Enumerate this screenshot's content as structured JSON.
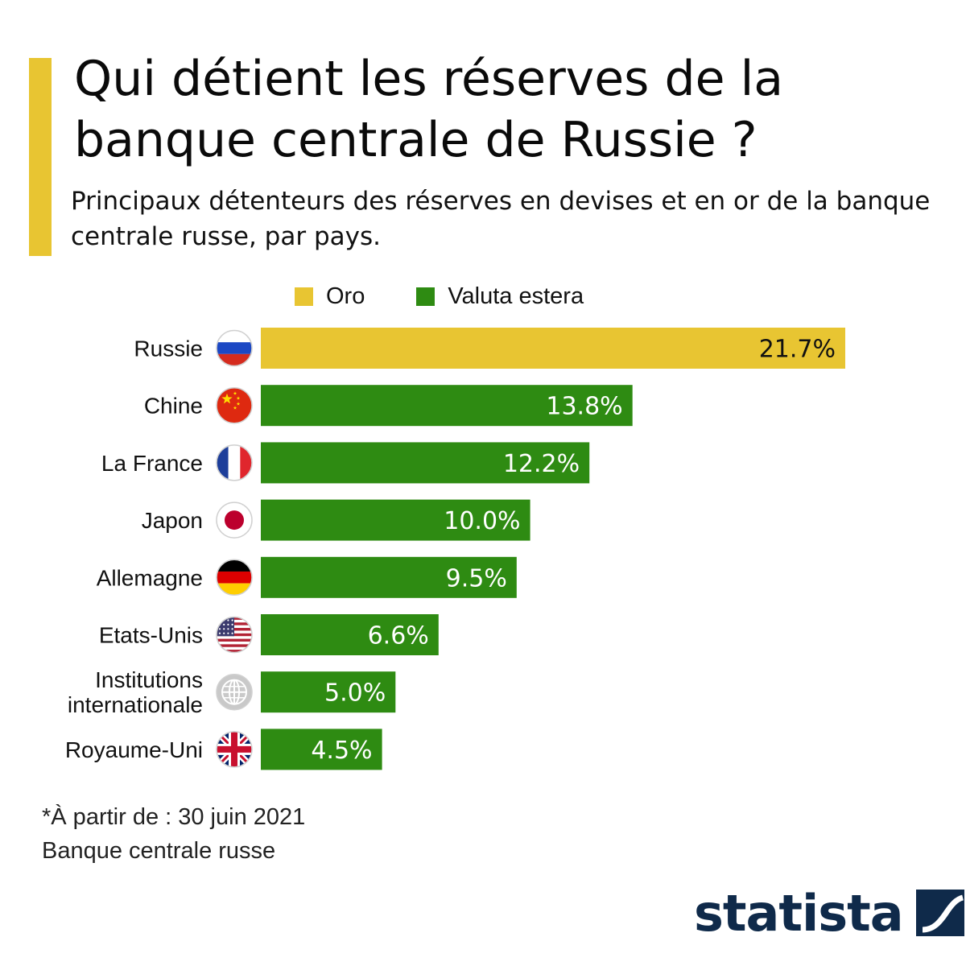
{
  "header": {
    "title": "Qui détient les réserves de la banque centrale de Russie ?",
    "subtitle": "Principaux détenteurs des réserves en devises et en or de la banque centrale russe, par pays."
  },
  "colors": {
    "accent": "#e8c532",
    "gold": "#e8c532",
    "foreign_currency": "#2e8b12",
    "logo": "#0f2a4a"
  },
  "chart_data": {
    "type": "bar",
    "orientation": "horizontal",
    "legend": [
      {
        "name": "Oro",
        "color": "#e8c532"
      },
      {
        "name": "Valuta estera",
        "color": "#2e8b12"
      }
    ],
    "legend_position": "top",
    "categories": [
      "Russie",
      "Chine",
      "La France",
      "Japon",
      "Allemagne",
      "Etats-Unis",
      "Institutions internationale",
      "Royaume-Uni"
    ],
    "category_lines": [
      [
        "Russie"
      ],
      [
        "Chine"
      ],
      [
        "La France"
      ],
      [
        "Japon"
      ],
      [
        "Allemagne"
      ],
      [
        "Etats-Unis"
      ],
      [
        "Institutions",
        "internationale"
      ],
      [
        "Royaume-Uni"
      ]
    ],
    "flags": [
      "russia-flag-icon",
      "china-flag-icon",
      "france-flag-icon",
      "japan-flag-icon",
      "germany-flag-icon",
      "usa-flag-icon",
      "globe-icon",
      "uk-flag-icon"
    ],
    "values": [
      21.7,
      13.8,
      12.2,
      10.0,
      9.5,
      6.6,
      5.0,
      4.5
    ],
    "value_labels": [
      "21.7%",
      "13.8%",
      "12.2%",
      "10.0%",
      "9.5%",
      "6.6%",
      "5.0%",
      "4.5%"
    ],
    "bar_series": [
      "Oro",
      "Valuta estera",
      "Valuta estera",
      "Valuta estera",
      "Valuta estera",
      "Valuta estera",
      "Valuta estera",
      "Valuta estera"
    ],
    "unit": "%",
    "xlim": [
      0,
      21.7
    ],
    "grid": false
  },
  "footer": {
    "note": "*À partir de : 30 juin 2021",
    "source": "Banque centrale russe",
    "logo_text": "statista"
  }
}
